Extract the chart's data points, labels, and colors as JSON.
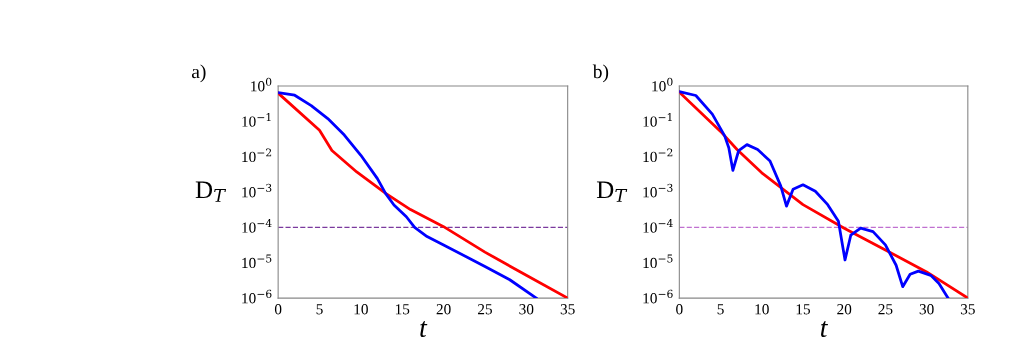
{
  "chart_data": [
    {
      "type": "line",
      "annotations": [
        "a)"
      ],
      "xlabel": "t",
      "ylabel": "D$_{T}$",
      "log": "y",
      "grid": false,
      "xlim": [
        0,
        35
      ],
      "xticks": [
        0,
        5,
        10,
        15,
        20,
        25,
        30,
        35
      ],
      "ylim": [
        1e-06,
        1
      ],
      "yticks": [
        {
          "value": 1e-06,
          "label": "10$^{−6}$"
        },
        {
          "value": 1e-05,
          "label": "10$^{−5}$"
        },
        {
          "value": 0.0001,
          "label": "10$^{−4}$"
        },
        {
          "value": 0.001,
          "label": "10$^{−3}$"
        },
        {
          "value": 0.01,
          "label": "10$^{−2}$"
        },
        {
          "value": 0.1,
          "label": "10$^{−1}$"
        },
        {
          "value": 1,
          "label": "10$^{0}$"
        }
      ],
      "ref_lines": [
        {
          "axis": "y",
          "value": 0.0001,
          "color": "#7b3a9e",
          "line_style": "dashed"
        }
      ],
      "series": [
        {
          "color": "#ff0000",
          "x": [
            0,
            5,
            6.5,
            9.5,
            13,
            16,
            20,
            25,
            30,
            35
          ],
          "values": [
            0.63,
            0.056,
            0.015,
            0.0037,
            0.00092,
            0.00032,
            0.000105,
            2e-05,
            4.4e-06,
            1e-06
          ]
        },
        {
          "color": "#0000ff",
          "x": [
            0,
            2,
            4,
            6,
            8,
            10,
            12,
            13,
            14,
            15.5,
            16.5,
            18,
            20,
            25,
            28,
            31.2
          ],
          "values": [
            0.65,
            0.55,
            0.28,
            0.12,
            0.041,
            0.011,
            0.0024,
            0.0009,
            0.00043,
            0.0002,
            0.0001,
            5.5e-05,
            3.2e-05,
            7.8e-06,
            3.3e-06,
            1e-06
          ]
        }
      ]
    },
    {
      "type": "line",
      "annotations": [
        "b)"
      ],
      "xlabel": "t",
      "ylabel": "D$_{T}$",
      "log": "y",
      "grid": false,
      "xlim": [
        0,
        35
      ],
      "xticks": [
        0,
        5,
        10,
        15,
        20,
        25,
        30,
        35
      ],
      "ylim": [
        1e-06,
        1
      ],
      "yticks": [
        {
          "value": 1e-06,
          "label": "10$^{−6}$"
        },
        {
          "value": 1e-05,
          "label": "10$^{−5}$"
        },
        {
          "value": 0.0001,
          "label": "10$^{−4}$"
        },
        {
          "value": 0.001,
          "label": "10$^{−3}$"
        },
        {
          "value": 0.01,
          "label": "10$^{−2}$"
        },
        {
          "value": 0.1,
          "label": "10$^{−1}$"
        },
        {
          "value": 1,
          "label": "10$^{0}$"
        }
      ],
      "ref_lines": [
        {
          "axis": "y",
          "value": 0.0001,
          "color": "#c070d0",
          "line_style": "dashed"
        }
      ],
      "series": [
        {
          "color": "#ff0000",
          "x": [
            0,
            5,
            7,
            10,
            15,
            20,
            25,
            30,
            35
          ],
          "values": [
            0.67,
            0.052,
            0.016,
            0.0035,
            0.00044,
            9.5e-05,
            2.3e-05,
            5.5e-06,
            1e-06
          ]
        },
        {
          "color": "#0000ff",
          "x": [
            0,
            2,
            4,
            5.5,
            6,
            6.5,
            7.2,
            8.2,
            9.5,
            11,
            12.3,
            13,
            13.8,
            15,
            16.5,
            18,
            19.3,
            20.1,
            20.8,
            22,
            23.5,
            25,
            26.3,
            27.1,
            28,
            29,
            30.5,
            31.5,
            32.6
          ],
          "values": [
            0.7,
            0.54,
            0.16,
            0.039,
            0.018,
            0.0041,
            0.015,
            0.022,
            0.016,
            0.0076,
            0.0015,
            0.0004,
            0.0012,
            0.0016,
            0.00105,
            0.00044,
            0.00015,
            1.2e-05,
            6e-05,
            9.5e-05,
            7.6e-05,
            3.2e-05,
            8.5e-06,
            2.1e-06,
            4.7e-06,
            5.8e-06,
            4.4e-06,
            2.6e-06,
            1e-06
          ]
        }
      ]
    }
  ]
}
